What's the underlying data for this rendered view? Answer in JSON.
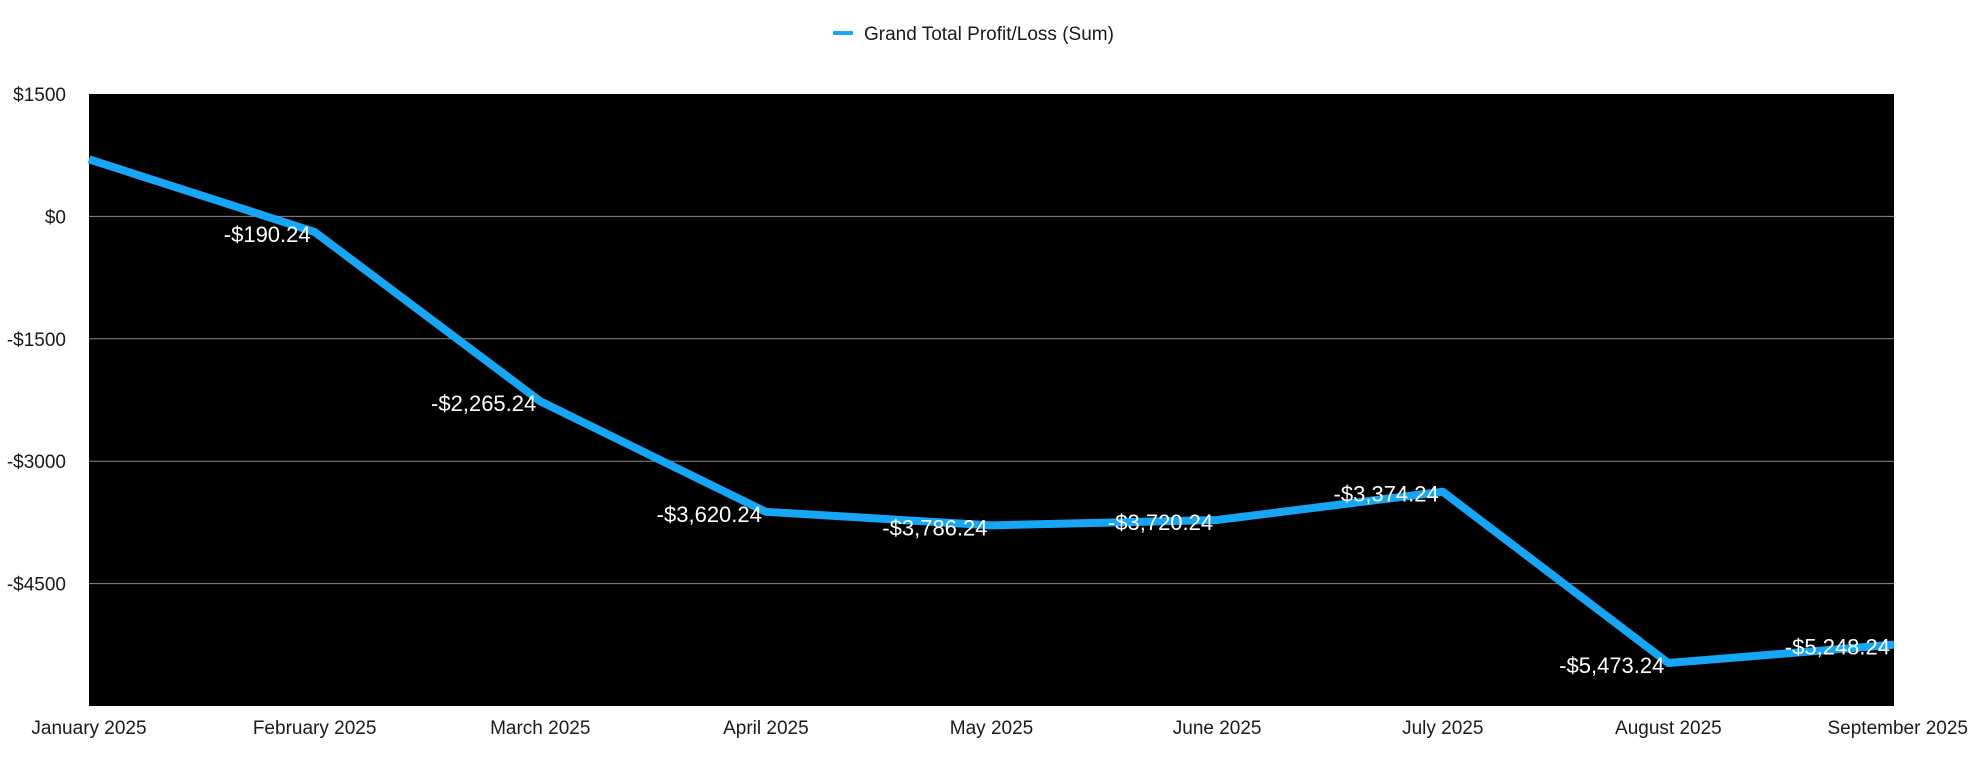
{
  "chart_data": {
    "type": "line",
    "legend": {
      "position": "top-center",
      "entries": [
        "Grand Total Profit/Loss (Sum)"
      ]
    },
    "categories": [
      "January 2025",
      "February 2025",
      "March 2025",
      "April 2025",
      "May 2025",
      "June 2025",
      "July 2025",
      "August 2025",
      "September 2025"
    ],
    "series": [
      {
        "name": "Grand Total Profit/Loss (Sum)",
        "color": "#16a6f5",
        "values": [
          700,
          -190.24,
          -2265.24,
          -3620.24,
          -3786.24,
          -3720.24,
          -3374.24,
          -5473.24,
          -5248.24
        ],
        "labels": [
          "",
          "-$190.24",
          "-$2,265.24",
          "-$3,620.24",
          "-$3,786.24",
          "-$3,720.24",
          "-$3,374.24",
          "-$5,473.24",
          "-$5,248.24"
        ]
      }
    ],
    "y_ticks": [
      1500,
      0,
      -1500,
      -3000,
      -4500
    ],
    "y_tick_labels": [
      "$1500",
      "$0",
      "-$1500",
      "-$3000",
      "-$4500"
    ],
    "ylim": [
      -6000,
      1500
    ],
    "grid": true,
    "plot_background": "#000000",
    "gridline_color": "#8c8c8c"
  }
}
